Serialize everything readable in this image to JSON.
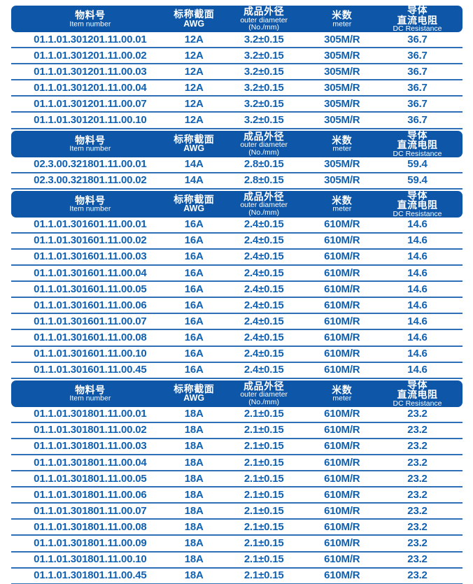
{
  "colors": {
    "page_bg": "#ffffff",
    "header_bg": "#0d56a8",
    "header_text": "#ffffff",
    "row_text": "#1161b2",
    "divider": "#2e6fb6"
  },
  "table": {
    "cell_names": [
      "cell-item-number",
      "cell-awg",
      "cell-outer-diameter",
      "cell-meter",
      "cell-dc-resistance"
    ],
    "columns": [
      {
        "name": "item-number",
        "lines": [
          {
            "text": "物料号",
            "style": "zh"
          },
          {
            "text": "Item number",
            "style": "en"
          }
        ]
      },
      {
        "name": "awg",
        "lines": [
          {
            "text": "标称截面",
            "style": "zh"
          },
          {
            "text": "AWG",
            "style": "awg"
          }
        ]
      },
      {
        "name": "outer-diameter",
        "lines": [
          {
            "text": "成品外径",
            "style": "zh"
          },
          {
            "text": "outer diameter",
            "style": "en"
          },
          {
            "text": "(No./mm)",
            "style": "en"
          }
        ]
      },
      {
        "name": "meter",
        "lines": [
          {
            "text": "米数",
            "style": "zh"
          },
          {
            "text": "meter",
            "style": "en"
          }
        ]
      },
      {
        "name": "dc-resistance",
        "lines": [
          {
            "text": "导体",
            "style": "zh"
          },
          {
            "text": "直流电阻",
            "style": "zh"
          },
          {
            "text": "DC Resistance",
            "style": "en"
          }
        ]
      }
    ],
    "sections": [
      {
        "awg_group": "12A",
        "rows": [
          [
            "01.1.01.301201.11.00.01",
            "12A",
            "3.2±0.15",
            "305M/R",
            "36.7"
          ],
          [
            "01.1.01.301201.11.00.02",
            "12A",
            "3.2±0.15",
            "305M/R",
            "36.7"
          ],
          [
            "01.1.01.301201.11.00.03",
            "12A",
            "3.2±0.15",
            "305M/R",
            "36.7"
          ],
          [
            "01.1.01.301201.11.00.04",
            "12A",
            "3.2±0.15",
            "305M/R",
            "36.7"
          ],
          [
            "01.1.01.301201.11.00.07",
            "12A",
            "3.2±0.15",
            "305M/R",
            "36.7"
          ],
          [
            "01.1.01.301201.11.00.10",
            "12A",
            "3.2±0.15",
            "305M/R",
            "36.7"
          ]
        ]
      },
      {
        "awg_group": "14A",
        "rows": [
          [
            "02.3.00.321801.11.00.01",
            "14A",
            "2.8±0.15",
            "305M/R",
            "59.4"
          ],
          [
            "02.3.00.321801.11.00.02",
            "14A",
            "2.8±0.15",
            "305M/R",
            "59.4"
          ]
        ]
      },
      {
        "awg_group": "16A",
        "rows": [
          [
            "01.1.01.301601.11.00.01",
            "16A",
            "2.4±0.15",
            "610M/R",
            "14.6"
          ],
          [
            "01.1.01.301601.11.00.02",
            "16A",
            "2.4±0.15",
            "610M/R",
            "14.6"
          ],
          [
            "01.1.01.301601.11.00.03",
            "16A",
            "2.4±0.15",
            "610M/R",
            "14.6"
          ],
          [
            "01.1.01.301601.11.00.04",
            "16A",
            "2.4±0.15",
            "610M/R",
            "14.6"
          ],
          [
            "01.1.01.301601.11.00.05",
            "16A",
            "2.4±0.15",
            "610M/R",
            "14.6"
          ],
          [
            "01.1.01.301601.11.00.06",
            "16A",
            "2.4±0.15",
            "610M/R",
            "14.6"
          ],
          [
            "01.1.01.301601.11.00.07",
            "16A",
            "2.4±0.15",
            "610M/R",
            "14.6"
          ],
          [
            "01.1.01.301601.11.00.08",
            "16A",
            "2.4±0.15",
            "610M/R",
            "14.6"
          ],
          [
            "01.1.01.301601.11.00.10",
            "16A",
            "2.4±0.15",
            "610M/R",
            "14.6"
          ],
          [
            "01.1.01.301601.11.00.45",
            "16A",
            "2.4±0.15",
            "610M/R",
            "14.6"
          ]
        ]
      },
      {
        "awg_group": "18A",
        "rows": [
          [
            "01.1.01.301801.11.00.01",
            "18A",
            "2.1±0.15",
            "610M/R",
            "23.2"
          ],
          [
            "01.1.01.301801.11.00.02",
            "18A",
            "2.1±0.15",
            "610M/R",
            "23.2"
          ],
          [
            "01.1.01.301801.11.00.03",
            "18A",
            "2.1±0.15",
            "610M/R",
            "23.2"
          ],
          [
            "01.1.01.301801.11.00.04",
            "18A",
            "2.1±0.15",
            "610M/R",
            "23.2"
          ],
          [
            "01.1.01.301801.11.00.05",
            "18A",
            "2.1±0.15",
            "610M/R",
            "23.2"
          ],
          [
            "01.1.01.301801.11.00.06",
            "18A",
            "2.1±0.15",
            "610M/R",
            "23.2"
          ],
          [
            "01.1.01.301801.11.00.07",
            "18A",
            "2.1±0.15",
            "610M/R",
            "23.2"
          ],
          [
            "01.1.01.301801.11.00.08",
            "18A",
            "2.1±0.15",
            "610M/R",
            "23.2"
          ],
          [
            "01.1.01.301801.11.00.09",
            "18A",
            "2.1±0.15",
            "610M/R",
            "23.2"
          ],
          [
            "01.1.01.301801.11.00.10",
            "18A",
            "2.1±0.15",
            "610M/R",
            "23.2"
          ],
          [
            "01.1.01.301801.11.00.45",
            "18A",
            "2.1±0.15",
            "610M/R",
            "23.2"
          ]
        ]
      }
    ]
  }
}
